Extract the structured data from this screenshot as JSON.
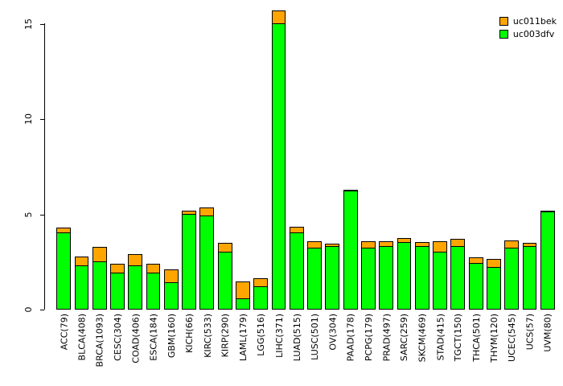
{
  "legend": {
    "items": [
      {
        "label": "uc011bek",
        "color": "#FFA500"
      },
      {
        "label": "uc003dfv",
        "color": "#00FF00"
      }
    ]
  },
  "chart_data": {
    "type": "bar",
    "stacked": true,
    "title": "",
    "xlabel": "",
    "ylabel": "",
    "ylim": [
      0,
      15
    ],
    "yticks": [
      0,
      5,
      10,
      15
    ],
    "grid": false,
    "legend_position": "top-right",
    "categories": [
      "ACC(79)",
      "BLCA(408)",
      "BRCA(1093)",
      "CESC(304)",
      "COAD(406)",
      "ESCA(184)",
      "GBM(160)",
      "KICH(66)",
      "KIRC(533)",
      "KIRP(290)",
      "LAML(179)",
      "LGG(516)",
      "LIHC(371)",
      "LUAD(515)",
      "LUSC(501)",
      "OV(304)",
      "PAAD(178)",
      "PCPG(179)",
      "PRAD(497)",
      "SARC(259)",
      "SKCM(469)",
      "STAD(415)",
      "TGCT(150)",
      "THCA(501)",
      "THYM(120)",
      "UCEC(545)",
      "UCS(57)",
      "UVM(80)"
    ],
    "series": [
      {
        "name": "uc003dfv",
        "color": "#00FF00",
        "values": [
          4.0,
          2.3,
          2.5,
          1.9,
          2.3,
          1.9,
          1.4,
          5.0,
          4.9,
          3.0,
          0.55,
          1.2,
          15.0,
          4.0,
          3.2,
          3.3,
          6.2,
          3.2,
          3.3,
          3.5,
          3.3,
          3.0,
          3.3,
          2.4,
          2.2,
          3.2,
          3.3,
          5.1
        ]
      },
      {
        "name": "uc011bek",
        "color": "#FFA500",
        "values": [
          0.3,
          0.5,
          0.8,
          0.5,
          0.6,
          0.5,
          0.7,
          0.2,
          0.45,
          0.5,
          0.95,
          0.45,
          0.7,
          0.35,
          0.4,
          0.15,
          0.1,
          0.4,
          0.3,
          0.25,
          0.25,
          0.6,
          0.4,
          0.35,
          0.45,
          0.45,
          0.2,
          0.1
        ]
      }
    ]
  }
}
